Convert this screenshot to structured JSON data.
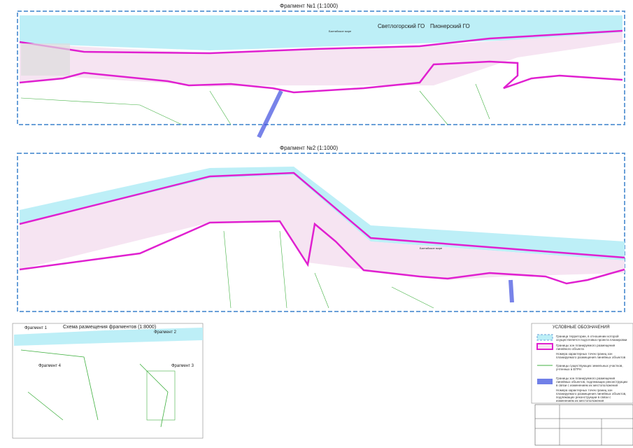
{
  "fragment1": {
    "title": "Фрагмент №1 (1:1000)",
    "border_left": "Светлогорский ГО",
    "border_right": "Пионерский ГО",
    "sea": "Балтийское море"
  },
  "fragment2": {
    "title": "Фрагмент №2 (1:1000)",
    "sea": "Балтийское море"
  },
  "scheme": {
    "title": "Схема размещения фрагментов (1:8000)",
    "labels": [
      "Фрагмент 1",
      "Фрагмент 2",
      "Фрагмент 3",
      "Фрагмент 4"
    ]
  },
  "legend": {
    "title": "УСЛОВНЫЕ ОБОЗНАЧЕНИЯ",
    "items": [
      "Граница территории, в отношении которой осуществляется подготовка проекта планировки",
      "Границы зон планируемого размещения линейного объекта",
      "Номера характерных точек границ зон планируемого размещения линейных объектов",
      "Границы существующих земельных участков, учтенных в ЕГРН",
      "Границы зон планируемого размещения линейных объектов, подлежащих реконструкции в связи с изменением их местоположения",
      "Номера характерных точек границ зон планируемого размещения линейных объектов, подлежащих реконструкции в связи с изменением их местоположения"
    ]
  }
}
